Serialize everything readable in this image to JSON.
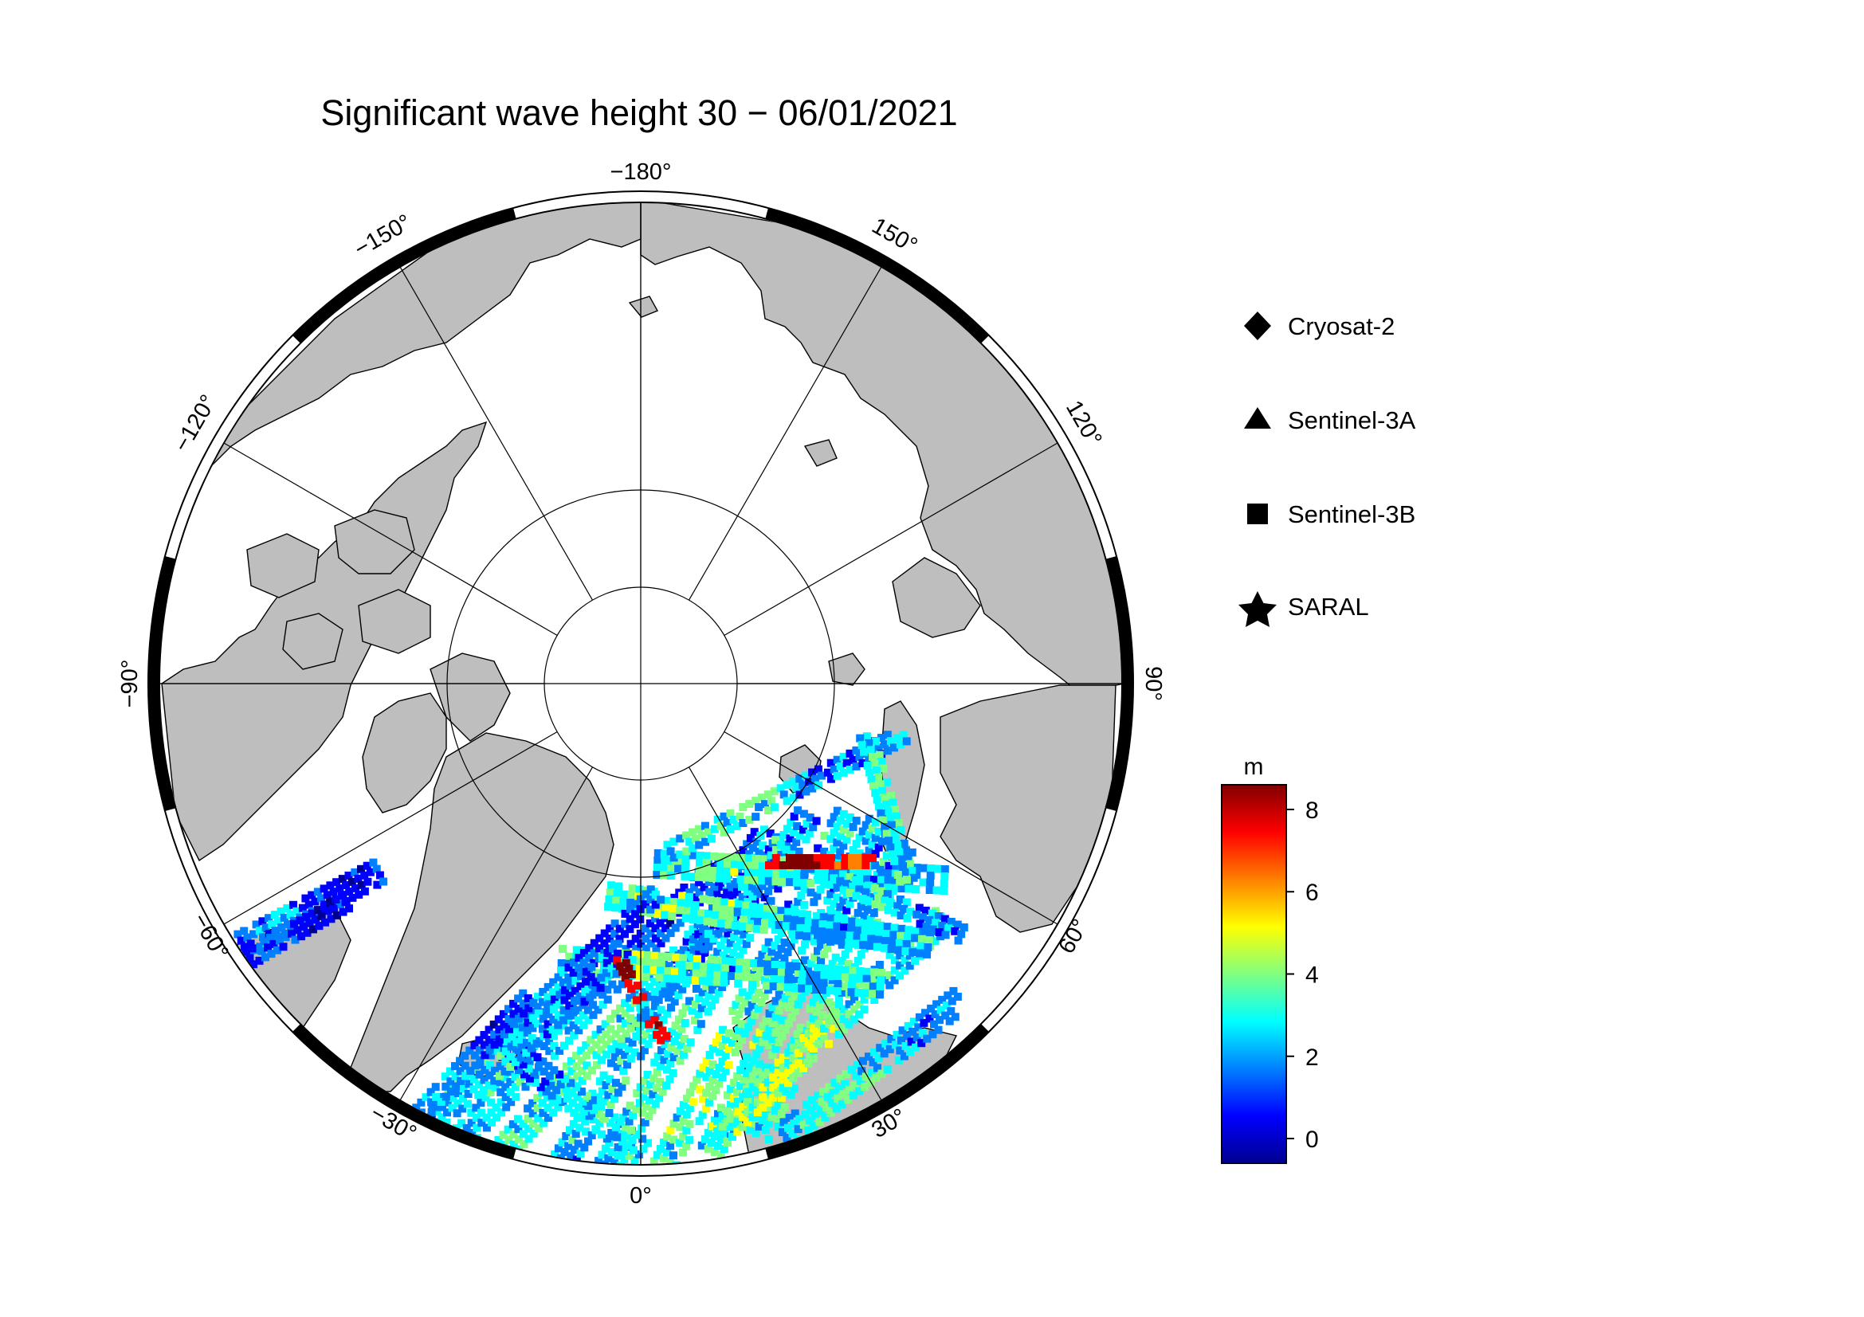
{
  "figure": {
    "title": "Significant wave height 30 − 06/01/2021"
  },
  "map": {
    "projection": "north-polar-stereographic",
    "center": "North Pole",
    "frame": "alternating black/white longitude scale",
    "graticule": {
      "meridian_step_deg": 30,
      "parallels_deg": [
        80,
        70
      ]
    },
    "land_color": "#bebebe",
    "ocean_color": "#ffffff",
    "longitude_labels": {
      "m180": "−180°",
      "m150": "−150°",
      "m120": "−120°",
      "m90": "−90°",
      "m60": "−60°",
      "m30": "−30°",
      "p0": "0°",
      "p30": "30°",
      "p60": "60°",
      "p90": "90°",
      "p120": "120°",
      "p150": "150°"
    },
    "data_region": "North Atlantic, Norwegian, Greenland, Barents and Kara Seas, Baffin Bay"
  },
  "legend": {
    "items": [
      {
        "label": "Cryosat-2",
        "icon": "diamond-icon"
      },
      {
        "label": "Sentinel-3A",
        "icon": "triangle-icon"
      },
      {
        "label": "Sentinel-3B",
        "icon": "square-icon"
      },
      {
        "label": "SARAL",
        "icon": "star-icon"
      }
    ]
  },
  "colorbar": {
    "unit": "m",
    "colormap": "jet",
    "colors": [
      "#00008f",
      "#0000ff",
      "#0080ff",
      "#00ffff",
      "#80ff80",
      "#ffff00",
      "#ff8000",
      "#ff0000",
      "#800000"
    ],
    "range": [
      -0.6,
      8.6
    ],
    "ticks": [
      {
        "value": 8,
        "label": "8"
      },
      {
        "value": 6,
        "label": "6"
      },
      {
        "value": 4,
        "label": "4"
      },
      {
        "value": 2,
        "label": "2"
      },
      {
        "value": 0,
        "label": "0"
      }
    ]
  }
}
